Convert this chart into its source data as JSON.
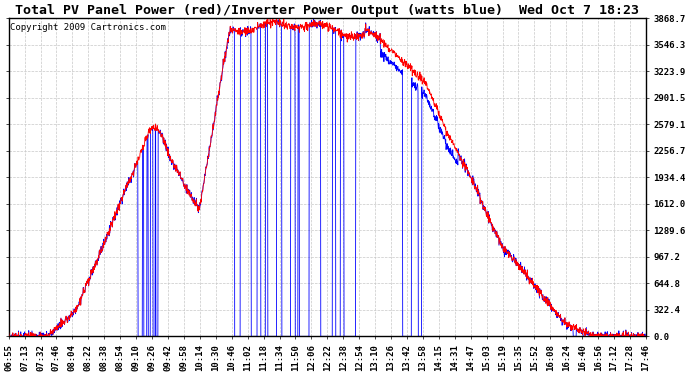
{
  "title": "Total PV Panel Power (red)/Inverter Power Output (watts blue)  Wed Oct 7 18:23",
  "copyright": "Copyright 2009 Cartronics.com",
  "ylabel_values": [
    0.0,
    322.4,
    644.8,
    967.2,
    1289.6,
    1612.0,
    1934.4,
    2256.7,
    2579.1,
    2901.5,
    3223.9,
    3546.3,
    3868.7
  ],
  "ymax": 3868.7,
  "ymin": 0.0,
  "x_tick_labels": [
    "06:55",
    "07:13",
    "07:32",
    "07:46",
    "08:04",
    "08:22",
    "08:38",
    "08:54",
    "09:10",
    "09:26",
    "09:42",
    "09:58",
    "10:14",
    "10:30",
    "10:46",
    "11:02",
    "11:18",
    "11:34",
    "11:50",
    "12:06",
    "12:22",
    "12:38",
    "12:54",
    "13:10",
    "13:26",
    "13:42",
    "13:58",
    "14:15",
    "14:31",
    "14:47",
    "15:03",
    "15:19",
    "15:35",
    "15:52",
    "16:08",
    "16:24",
    "16:40",
    "16:56",
    "17:12",
    "17:28",
    "17:46"
  ],
  "background_color": "#ffffff",
  "grid_color": "#c8c8c8",
  "line_red": "#ff0000",
  "line_blue": "#0000ff",
  "title_fontsize": 9.5,
  "copyright_fontsize": 6.5,
  "tick_fontsize": 6.5,
  "figwidth": 6.9,
  "figheight": 3.75,
  "n_fine": 2000,
  "spike_seed": 7,
  "noise_seed": 3
}
